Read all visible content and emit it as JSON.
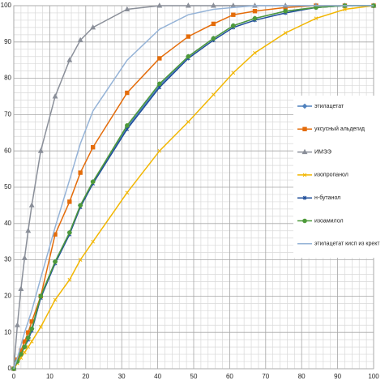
{
  "chart_data": {
    "type": "line",
    "x": [
      0,
      1,
      2,
      3,
      4,
      5,
      7.5,
      11.5,
      15.5,
      18.5,
      22,
      31.5,
      40.5,
      48.5,
      55.5,
      61,
      67,
      75.5,
      84,
      92,
      100
    ],
    "series": [
      {
        "name": "этилацетат",
        "color": "#4f81bd",
        "marker": "diamond",
        "values": [
          0,
          2,
          4,
          6,
          8.5,
          11,
          20,
          29.5,
          37.5,
          45,
          51.5,
          66.5,
          78,
          86,
          91,
          94.5,
          96.5,
          98.5,
          99.5,
          100,
          100
        ]
      },
      {
        "name": "уксусный альдегид",
        "color": "#e46c0a",
        "marker": "square",
        "values": [
          0,
          2.5,
          5,
          7.5,
          10,
          13,
          20,
          37,
          46,
          54,
          61,
          76,
          85.5,
          91.5,
          95,
          97.5,
          98.5,
          99.5,
          100,
          100,
          100
        ]
      },
      {
        "name": "ИМЭЭ",
        "color": "#8a8f99",
        "marker": "triangle",
        "values": [
          0,
          12,
          22,
          30.5,
          38,
          45,
          60,
          75,
          85,
          90.5,
          94,
          99,
          100,
          100,
          100,
          100,
          100,
          100,
          100,
          100,
          100
        ]
      },
      {
        "name": "изопропанол",
        "color": "#f2b600",
        "marker": "x",
        "values": [
          0,
          1.5,
          3,
          4.5,
          6,
          7.5,
          11.5,
          19,
          24.5,
          30,
          35,
          48.5,
          60,
          68,
          75.5,
          81.5,
          87,
          92.5,
          96.5,
          99,
          100
        ]
      },
      {
        "name": "н-бутанол",
        "color": "#1f4e9a",
        "marker": "star",
        "values": [
          0,
          2,
          4,
          6,
          8,
          10.5,
          19.5,
          29,
          37,
          44.5,
          51,
          66,
          77.5,
          85.5,
          90.5,
          94,
          96,
          98,
          99.5,
          100,
          100
        ]
      },
      {
        "name": "изоамилол",
        "color": "#4e9a3a",
        "marker": "circle",
        "values": [
          0,
          2,
          4,
          6,
          8.5,
          11,
          20,
          29.5,
          37.5,
          45,
          51.5,
          67,
          78.5,
          86,
          91,
          94.5,
          96.5,
          98.5,
          99.5,
          100,
          100
        ]
      },
      {
        "name": "этилацетат кисп из крект",
        "color": "#95b3d7",
        "marker": "none",
        "values": [
          0,
          3,
          6.5,
          10,
          13,
          16,
          25,
          39,
          52,
          62,
          71,
          85,
          93.5,
          97.5,
          99,
          99.5,
          100,
          100,
          100,
          100,
          100
        ]
      }
    ],
    "xlim": [
      0,
      100
    ],
    "ylim": [
      0,
      100
    ],
    "xticks": [
      0,
      10,
      20,
      30,
      40,
      50,
      60,
      70,
      80,
      90,
      100
    ],
    "yticks": [
      0,
      10,
      20,
      30,
      40,
      50,
      60,
      70,
      80,
      90,
      100
    ],
    "grid": true,
    "legend": "right"
  }
}
